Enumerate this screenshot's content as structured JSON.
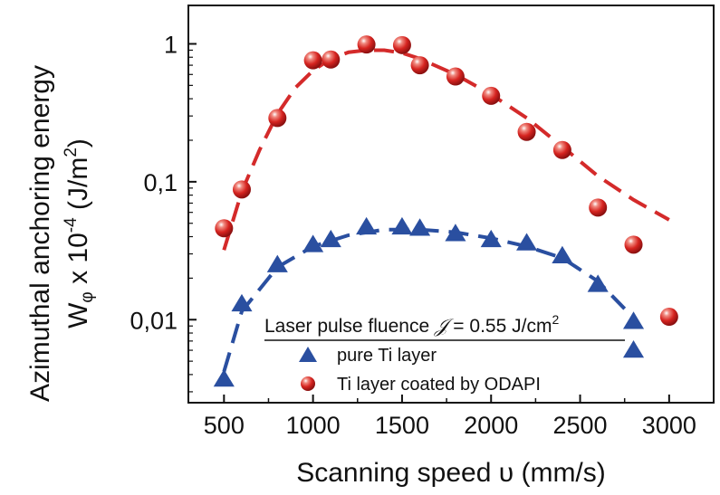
{
  "chart_data": {
    "type": "scatter",
    "xlabel": "Scanning speed υ (mm/s)",
    "ylabel_line1": "Azimuthal anchoring energy",
    "ylabel_line2_prefix": "W",
    "ylabel_line2_sub": "φ",
    "ylabel_line2_mid": " x 10",
    "ylabel_line2_exp": "-4",
    "ylabel_line2_unit": " (J/m",
    "ylabel_line2_unit_exp": "2",
    "ylabel_line2_close": ")",
    "xlim": [
      300,
      3250
    ],
    "ylim": [
      0.0025,
      1.9
    ],
    "y_scale": "log",
    "x_ticks": [
      500,
      1000,
      1500,
      2000,
      2500,
      3000
    ],
    "x_tick_labels": [
      "500",
      "1000",
      "1500",
      "2000",
      "2500",
      "3000"
    ],
    "y_ticks": [
      0.01,
      0.1,
      1
    ],
    "y_tick_labels": [
      "0,01",
      "0,1",
      "1"
    ],
    "legend": {
      "title_prefix": "Laser pulse fluence ",
      "title_symbol": "𝒥",
      "title_value": " = 0.55 J/cm",
      "title_exp": "2",
      "placement": "bottom-center"
    },
    "series": [
      {
        "name": "pure Ti layer",
        "marker": "triangle",
        "color": "#2a4fa0",
        "points": [
          [
            500,
            0.0037
          ],
          [
            600,
            0.013
          ],
          [
            800,
            0.025
          ],
          [
            1000,
            0.035
          ],
          [
            1100,
            0.038
          ],
          [
            1300,
            0.047
          ],
          [
            1500,
            0.047
          ],
          [
            1600,
            0.046
          ],
          [
            1800,
            0.042
          ],
          [
            2000,
            0.038
          ],
          [
            2200,
            0.036
          ],
          [
            2400,
            0.029
          ],
          [
            2600,
            0.018
          ],
          [
            2800,
            0.0097
          ],
          [
            2800,
            0.006
          ]
        ],
        "fit": [
          [
            500,
            0.0042
          ],
          [
            600,
            0.0115
          ],
          [
            800,
            0.024
          ],
          [
            1000,
            0.034
          ],
          [
            1200,
            0.041
          ],
          [
            1400,
            0.045
          ],
          [
            1600,
            0.045
          ],
          [
            1800,
            0.043
          ],
          [
            2000,
            0.039
          ],
          [
            2200,
            0.034
          ],
          [
            2400,
            0.028
          ],
          [
            2600,
            0.019
          ],
          [
            2750,
            0.012
          ]
        ]
      },
      {
        "name": "Ti layer coated by ODAPI",
        "marker": "sphere",
        "color": "#d42a2a",
        "points": [
          [
            500,
            0.046
          ],
          [
            600,
            0.088
          ],
          [
            800,
            0.29
          ],
          [
            1000,
            0.76
          ],
          [
            1100,
            0.77
          ],
          [
            1300,
            0.99
          ],
          [
            1500,
            0.98
          ],
          [
            1600,
            0.7
          ],
          [
            1800,
            0.58
          ],
          [
            2000,
            0.42
          ],
          [
            2200,
            0.23
          ],
          [
            2400,
            0.17
          ],
          [
            2600,
            0.065
          ],
          [
            2800,
            0.035
          ],
          [
            3000,
            0.0105
          ]
        ],
        "fit": [
          [
            500,
            0.032
          ],
          [
            600,
            0.085
          ],
          [
            700,
            0.17
          ],
          [
            800,
            0.31
          ],
          [
            900,
            0.48
          ],
          [
            1000,
            0.64
          ],
          [
            1100,
            0.78
          ],
          [
            1200,
            0.87
          ],
          [
            1300,
            0.9
          ],
          [
            1400,
            0.9
          ],
          [
            1500,
            0.86
          ],
          [
            1600,
            0.78
          ],
          [
            1800,
            0.6
          ],
          [
            2000,
            0.43
          ],
          [
            2200,
            0.29
          ],
          [
            2400,
            0.18
          ],
          [
            2600,
            0.11
          ],
          [
            2800,
            0.074
          ],
          [
            3000,
            0.053
          ]
        ]
      }
    ]
  }
}
